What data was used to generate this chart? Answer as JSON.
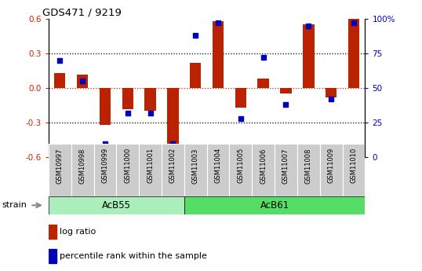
{
  "title": "GDS471 / 9219",
  "samples": [
    "GSM10997",
    "GSM10998",
    "GSM10999",
    "GSM11000",
    "GSM11001",
    "GSM11002",
    "GSM11003",
    "GSM11004",
    "GSM11005",
    "GSM11006",
    "GSM11007",
    "GSM11008",
    "GSM11009",
    "GSM11010"
  ],
  "log_ratio": [
    0.13,
    0.12,
    -0.32,
    -0.18,
    -0.2,
    -0.58,
    0.22,
    0.58,
    -0.17,
    0.08,
    -0.05,
    0.55,
    -0.08,
    0.6
  ],
  "percentile": [
    70,
    55,
    10,
    32,
    32,
    10,
    88,
    97,
    28,
    72,
    38,
    95,
    42,
    97
  ],
  "n_acb55": 6,
  "ylim": [
    -0.6,
    0.6
  ],
  "ylim2": [
    0,
    100
  ],
  "bar_color": "#bb2200",
  "dot_color": "#0000bb",
  "acb55_color": "#aaeebb",
  "acb61_color": "#55dd66",
  "tick_color_left": "#cc2200",
  "tick_color_right": "#0000cc",
  "strain_arrow_color": "#888888",
  "xtick_bg": "#cccccc"
}
